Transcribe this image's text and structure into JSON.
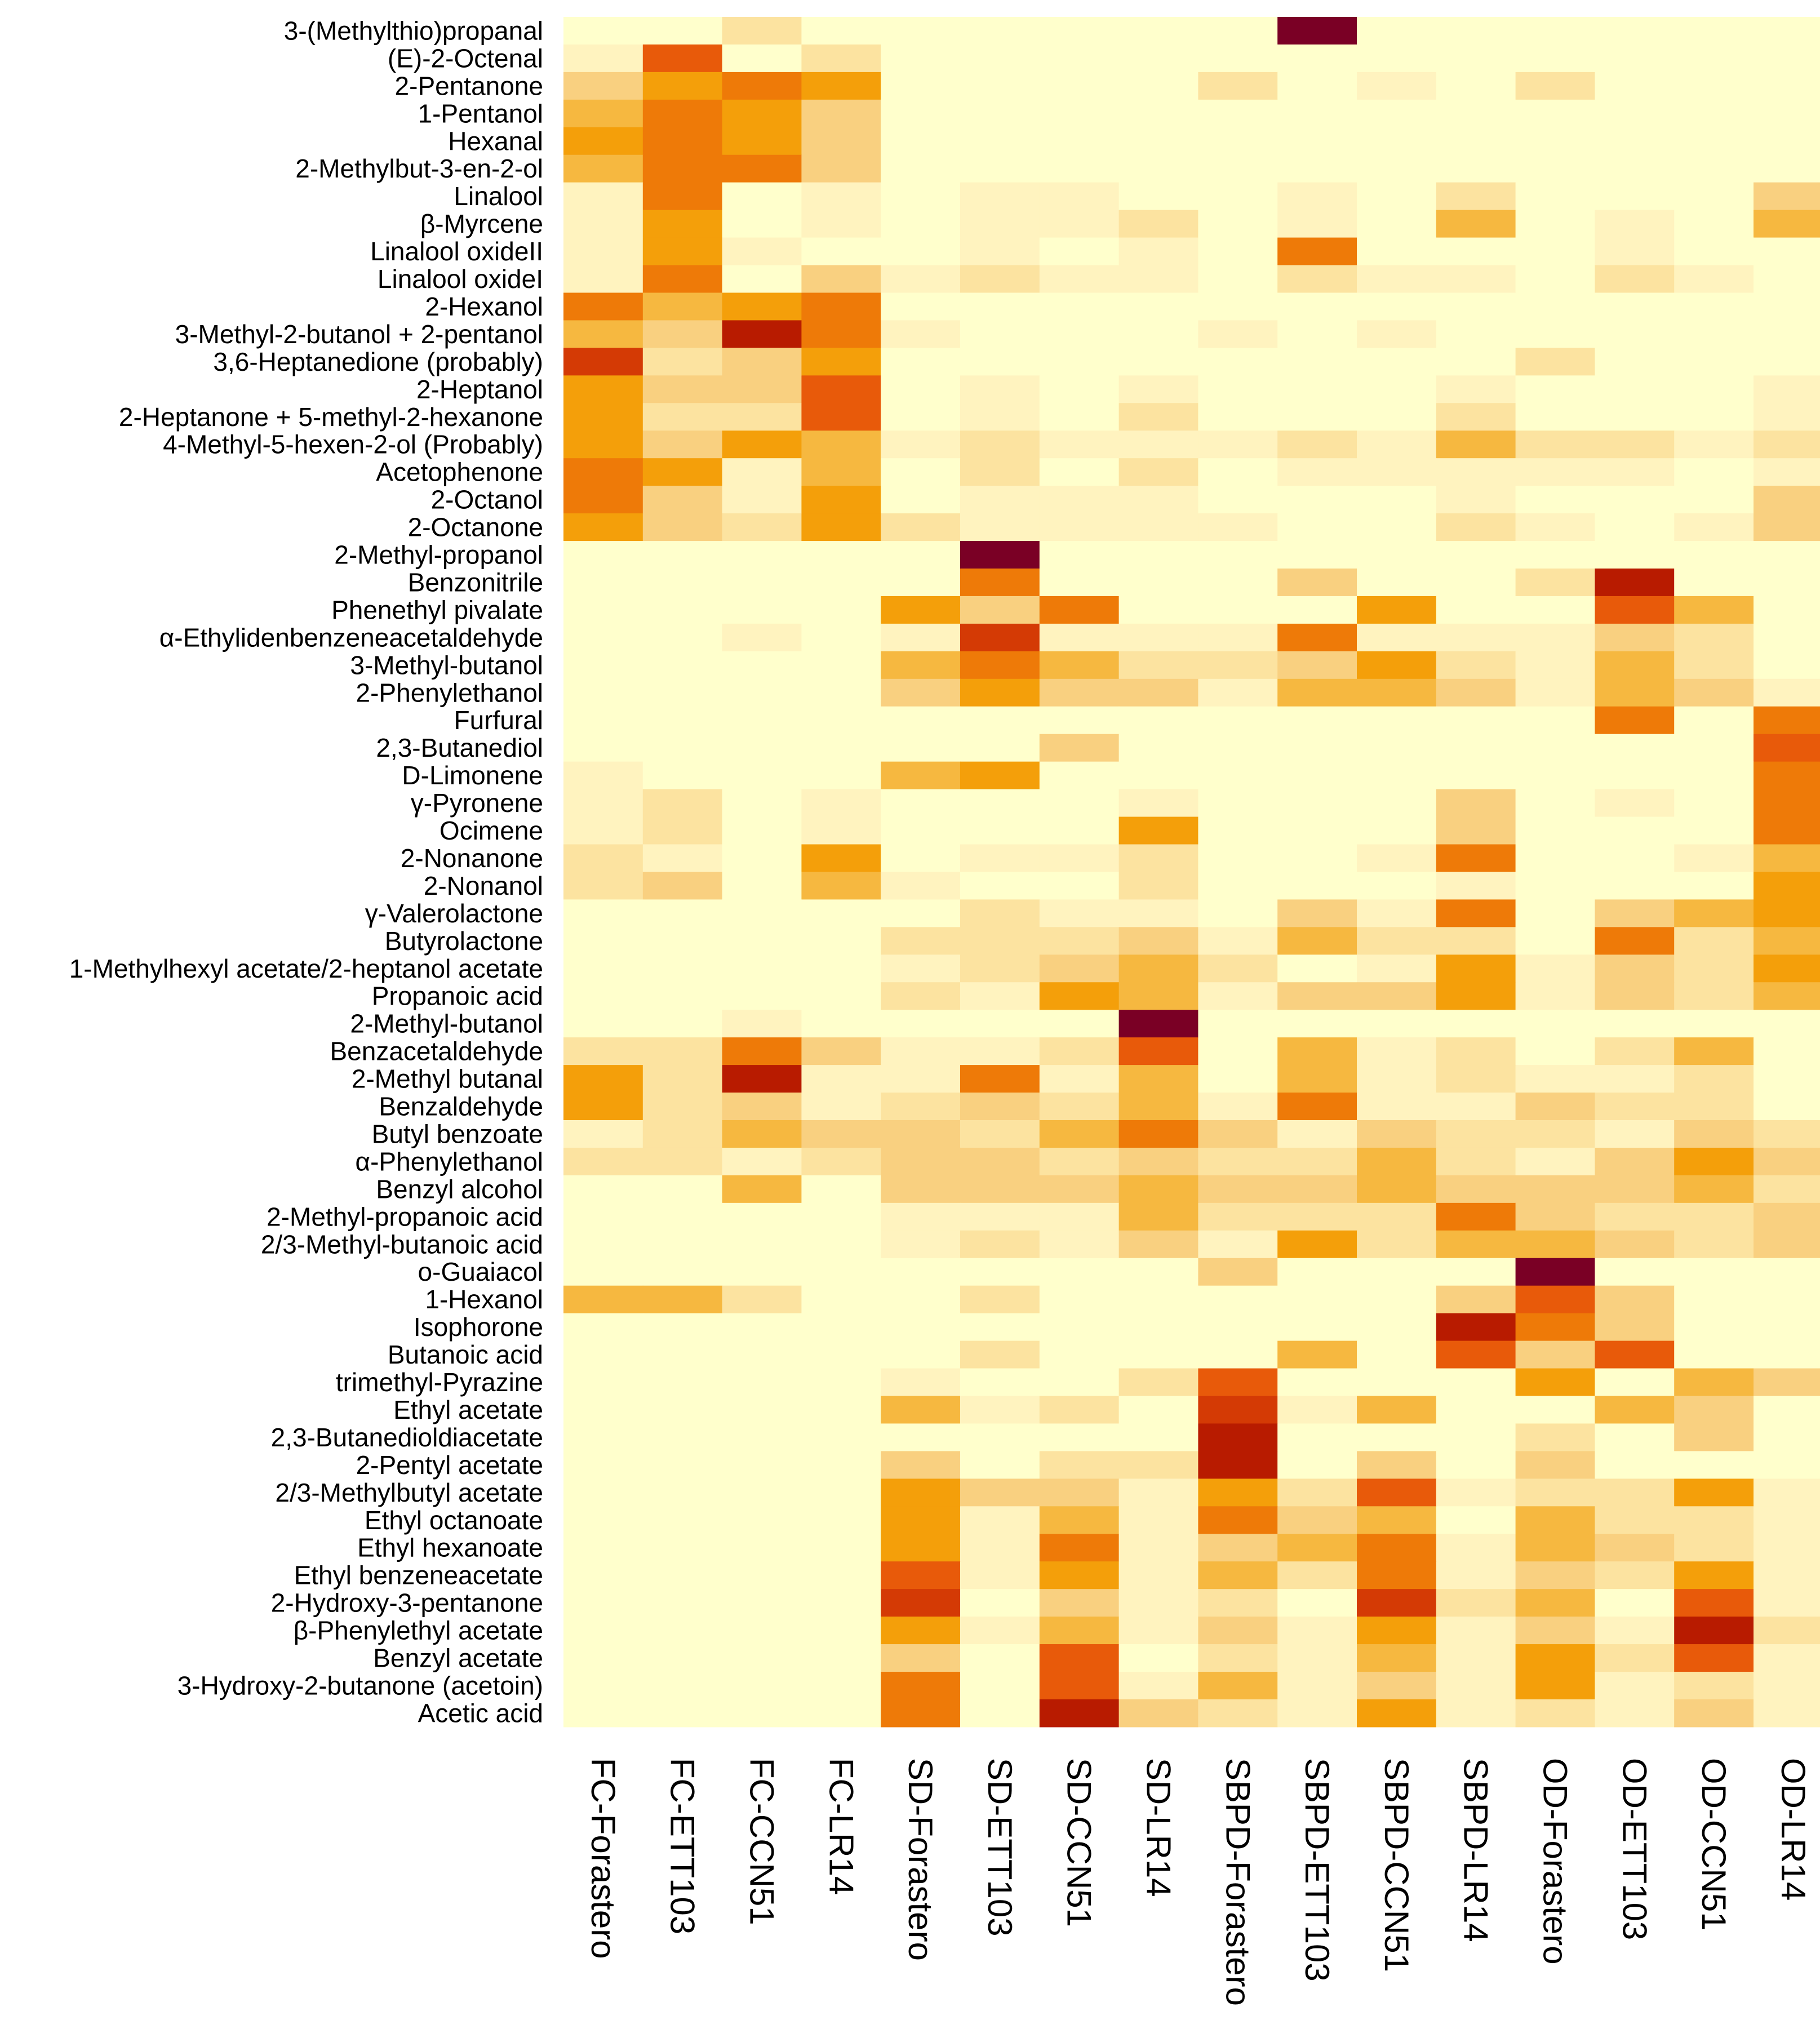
{
  "chart_data": {
    "type": "heatmap",
    "title": "",
    "xlabel": "",
    "ylabel": "",
    "legend": "none",
    "grid": false,
    "color_scale": {
      "min_color": "#FFFFCC",
      "stops": [
        "#FFFFCC",
        "#FFF3BF",
        "#FCE3A0",
        "#F9D080",
        "#F6B840",
        "#F49F0A",
        "#EE7A08",
        "#E85A0A",
        "#D43A05",
        "#B81B00",
        "#7A0025"
      ],
      "max_color": "#7A0025"
    },
    "columns": [
      "FC-Forastero",
      "FC-ETT103",
      "FC-CCN51",
      "FC-LR14",
      "SD-Forastero",
      "SD-ETT103",
      "SD-CCN51",
      "SD-LR14",
      "SBPD-Forastero",
      "SBPD-ETT103",
      "SBPD-CCN51",
      "SBPD-LR14",
      "OD-Forastero",
      "OD-ETT103",
      "OD-CCN51",
      "OD-LR14"
    ],
    "rows": [
      "3-(Methylthio)propanal",
      "(E)-2-Octenal",
      "2-Pentanone",
      "1-Pentanol",
      "Hexanal",
      "2-Methylbut-3-en-2-ol",
      "Linalool",
      "β-Myrcene",
      "Linalool oxideII",
      "Linalool oxideI",
      "2-Hexanol",
      "3-Methyl-2-butanol + 2-pentanol",
      "3,6-Heptanedione (probably)",
      "2-Heptanol",
      "2-Heptanone + 5-methyl-2-hexanone",
      "4-Methyl-5-hexen-2-ol (Probably)",
      "Acetophenone",
      "2-Octanol",
      "2-Octanone",
      "2-Methyl-propanol",
      "Benzonitrile",
      "Phenethyl pivalate",
      "α-Ethylidenbenzeneacetaldehyde",
      "3-Methyl-butanol",
      "2-Phenylethanol",
      "Furfural",
      "2,3-Butanediol",
      "D-Limonene",
      "γ-Pyronene",
      "Ocimene",
      "2-Nonanone",
      "2-Nonanol",
      "γ-Valerolactone",
      "Butyrolactone",
      "1-Methylhexyl acetate/2-heptanol acetate",
      "Propanoic acid",
      "2-Methyl-butanol",
      "Benzacetaldehyde",
      "2-Methyl butanal",
      "Benzaldehyde",
      "Butyl benzoate",
      "α-Phenylethanol",
      "Benzyl alcohol",
      "2-Methyl-propanoic acid",
      "2/3-Methyl-butanoic acid",
      "o-Guaiacol",
      "1-Hexanol",
      "Isophorone",
      "Butanoic acid",
      "trimethyl-Pyrazine",
      "Ethyl acetate",
      "2,3-Butanedioldiacetate",
      "2-Pentyl acetate",
      "2/3-Methylbutyl acetate",
      "Ethyl octanoate",
      "Ethyl hexanoate",
      "Ethyl benzeneacetate",
      "2-Hydroxy-3-pentanone",
      "β-Phenylethyl acetate",
      "Benzyl acetate",
      "3-Hydroxy-2-butanone (acetoin)",
      "Acetic acid"
    ],
    "values": [
      [
        0,
        0,
        2,
        0,
        0,
        0,
        0,
        0,
        0,
        10,
        0,
        0,
        0,
        0,
        0,
        0
      ],
      [
        1,
        7,
        0,
        2,
        0,
        0,
        0,
        0,
        0,
        0,
        0,
        0,
        0,
        0,
        0,
        0
      ],
      [
        3,
        5,
        6,
        5,
        0,
        0,
        0,
        0,
        2,
        0,
        1,
        0,
        2,
        0,
        0,
        0
      ],
      [
        4,
        6,
        5,
        3,
        0,
        0,
        0,
        0,
        0,
        0,
        0,
        0,
        0,
        0,
        0,
        0
      ],
      [
        5,
        6,
        5,
        3,
        0,
        0,
        0,
        0,
        0,
        0,
        0,
        0,
        0,
        0,
        0,
        0
      ],
      [
        4,
        6,
        6,
        3,
        0,
        0,
        0,
        0,
        0,
        0,
        0,
        0,
        0,
        0,
        0,
        0
      ],
      [
        1,
        6,
        0,
        1,
        0,
        1,
        1,
        0,
        0,
        1,
        0,
        2,
        0,
        0,
        0,
        3
      ],
      [
        1,
        5,
        0,
        1,
        0,
        1,
        1,
        2,
        0,
        1,
        0,
        4,
        0,
        1,
        0,
        4
      ],
      [
        1,
        5,
        1,
        0,
        0,
        1,
        0,
        1,
        0,
        6,
        0,
        0,
        0,
        1,
        0,
        0
      ],
      [
        1,
        6,
        0,
        3,
        1,
        2,
        1,
        1,
        0,
        2,
        1,
        1,
        0,
        2,
        1,
        0
      ],
      [
        6,
        4,
        5,
        6,
        0,
        0,
        0,
        0,
        0,
        0,
        0,
        0,
        0,
        0,
        0,
        0
      ],
      [
        4,
        3,
        9,
        6,
        1,
        0,
        0,
        0,
        1,
        0,
        1,
        0,
        0,
        0,
        0,
        0
      ],
      [
        8,
        2,
        3,
        5,
        0,
        0,
        0,
        0,
        0,
        0,
        0,
        0,
        2,
        0,
        0,
        0
      ],
      [
        5,
        3,
        3,
        7,
        0,
        1,
        0,
        1,
        0,
        0,
        0,
        1,
        0,
        0,
        0,
        1
      ],
      [
        5,
        2,
        2,
        7,
        0,
        1,
        0,
        2,
        0,
        0,
        0,
        2,
        0,
        0,
        0,
        1
      ],
      [
        5,
        3,
        5,
        4,
        1,
        2,
        1,
        1,
        1,
        2,
        1,
        4,
        2,
        2,
        1,
        2
      ],
      [
        6,
        5,
        1,
        4,
        0,
        2,
        0,
        2,
        0,
        1,
        1,
        1,
        1,
        1,
        0,
        1
      ],
      [
        6,
        3,
        1,
        5,
        0,
        1,
        1,
        1,
        0,
        0,
        0,
        1,
        0,
        0,
        0,
        3
      ],
      [
        5,
        3,
        2,
        5,
        2,
        1,
        1,
        1,
        1,
        0,
        0,
        2,
        1,
        0,
        1,
        3
      ],
      [
        0,
        0,
        0,
        0,
        0,
        10,
        0,
        0,
        0,
        0,
        0,
        0,
        0,
        0,
        0,
        0
      ],
      [
        0,
        0,
        0,
        0,
        0,
        6,
        0,
        0,
        0,
        3,
        0,
        0,
        2,
        9,
        0,
        0
      ],
      [
        0,
        0,
        0,
        0,
        5,
        3,
        6,
        0,
        0,
        0,
        5,
        0,
        0,
        7,
        4,
        0
      ],
      [
        0,
        0,
        1,
        0,
        1,
        8,
        1,
        1,
        1,
        6,
        1,
        1,
        1,
        3,
        2,
        0
      ],
      [
        0,
        0,
        0,
        0,
        4,
        6,
        4,
        2,
        2,
        3,
        5,
        2,
        1,
        4,
        2,
        0
      ],
      [
        0,
        0,
        0,
        0,
        3,
        5,
        3,
        3,
        1,
        4,
        4,
        3,
        1,
        4,
        3,
        1
      ],
      [
        0,
        0,
        0,
        0,
        0,
        0,
        0,
        0,
        0,
        0,
        0,
        0,
        0,
        6,
        0,
        6
      ],
      [
        0,
        0,
        0,
        0,
        0,
        0,
        3,
        0,
        0,
        0,
        0,
        0,
        0,
        0,
        0,
        7
      ],
      [
        1,
        0,
        0,
        0,
        4,
        5,
        0,
        0,
        0,
        0,
        0,
        0,
        0,
        0,
        0,
        6
      ],
      [
        1,
        2,
        0,
        1,
        0,
        0,
        0,
        1,
        0,
        0,
        0,
        3,
        0,
        1,
        0,
        6
      ],
      [
        1,
        2,
        0,
        1,
        0,
        0,
        0,
        5,
        0,
        0,
        0,
        3,
        0,
        0,
        0,
        6
      ],
      [
        2,
        1,
        0,
        5,
        0,
        1,
        1,
        2,
        0,
        0,
        1,
        6,
        0,
        0,
        1,
        4
      ],
      [
        2,
        3,
        0,
        4,
        1,
        0,
        0,
        2,
        0,
        0,
        0,
        1,
        0,
        0,
        0,
        5
      ],
      [
        0,
        0,
        0,
        0,
        0,
        2,
        1,
        1,
        0,
        3,
        1,
        6,
        0,
        3,
        4,
        5
      ],
      [
        0,
        0,
        0,
        0,
        2,
        2,
        2,
        3,
        1,
        4,
        2,
        2,
        0,
        6,
        2,
        4
      ],
      [
        0,
        0,
        0,
        0,
        1,
        2,
        3,
        4,
        2,
        0,
        1,
        5,
        1,
        3,
        2,
        5
      ],
      [
        0,
        0,
        0,
        0,
        2,
        1,
        5,
        4,
        1,
        3,
        3,
        5,
        1,
        3,
        2,
        4
      ],
      [
        0,
        0,
        1,
        0,
        0,
        0,
        0,
        10,
        0,
        0,
        0,
        0,
        0,
        0,
        0,
        0
      ],
      [
        2,
        2,
        6,
        3,
        1,
        1,
        2,
        7,
        0,
        4,
        1,
        2,
        0,
        2,
        4,
        0
      ],
      [
        5,
        2,
        9,
        1,
        1,
        6,
        1,
        4,
        0,
        4,
        1,
        2,
        1,
        1,
        2,
        0
      ],
      [
        5,
        2,
        3,
        1,
        2,
        3,
        2,
        4,
        1,
        6,
        1,
        1,
        3,
        2,
        2,
        0
      ],
      [
        1,
        2,
        4,
        3,
        3,
        2,
        4,
        6,
        3,
        1,
        3,
        2,
        2,
        1,
        3,
        2
      ],
      [
        2,
        2,
        1,
        2,
        3,
        3,
        2,
        3,
        2,
        2,
        4,
        2,
        1,
        3,
        5,
        3
      ],
      [
        0,
        0,
        4,
        0,
        3,
        3,
        3,
        4,
        3,
        3,
        4,
        3,
        3,
        3,
        4,
        2
      ],
      [
        0,
        0,
        0,
        0,
        1,
        1,
        1,
        4,
        2,
        2,
        2,
        6,
        3,
        2,
        2,
        3
      ],
      [
        0,
        0,
        0,
        0,
        1,
        2,
        1,
        3,
        1,
        5,
        2,
        4,
        4,
        3,
        2,
        3
      ],
      [
        0,
        0,
        0,
        0,
        0,
        0,
        0,
        0,
        3,
        0,
        0,
        0,
        10,
        0,
        0,
        0
      ],
      [
        4,
        4,
        2,
        0,
        0,
        2,
        0,
        0,
        0,
        0,
        0,
        3,
        7,
        3,
        0,
        0
      ],
      [
        0,
        0,
        0,
        0,
        0,
        0,
        0,
        0,
        0,
        0,
        0,
        9,
        6,
        3,
        0,
        0
      ],
      [
        0,
        0,
        0,
        0,
        0,
        2,
        0,
        0,
        0,
        4,
        0,
        7,
        3,
        7,
        0,
        0
      ],
      [
        0,
        0,
        0,
        0,
        1,
        0,
        0,
        2,
        7,
        0,
        0,
        0,
        5,
        0,
        4,
        3
      ],
      [
        0,
        0,
        0,
        0,
        4,
        1,
        2,
        0,
        8,
        1,
        4,
        0,
        0,
        4,
        3,
        0
      ],
      [
        0,
        0,
        0,
        0,
        0,
        0,
        0,
        0,
        9,
        0,
        0,
        0,
        2,
        0,
        3,
        0
      ],
      [
        0,
        0,
        0,
        0,
        3,
        0,
        2,
        2,
        9,
        0,
        3,
        0,
        3,
        0,
        0,
        0
      ],
      [
        0,
        0,
        0,
        0,
        5,
        3,
        3,
        1,
        5,
        2,
        7,
        1,
        2,
        2,
        5,
        1
      ],
      [
        0,
        0,
        0,
        0,
        5,
        1,
        4,
        1,
        6,
        3,
        4,
        0,
        4,
        2,
        2,
        1
      ],
      [
        0,
        0,
        0,
        0,
        5,
        1,
        6,
        1,
        3,
        4,
        6,
        1,
        4,
        3,
        2,
        1
      ],
      [
        0,
        0,
        0,
        0,
        7,
        1,
        5,
        1,
        4,
        2,
        6,
        1,
        3,
        2,
        5,
        1
      ],
      [
        0,
        0,
        0,
        0,
        8,
        0,
        3,
        1,
        2,
        0,
        8,
        2,
        4,
        0,
        7,
        1
      ],
      [
        0,
        0,
        0,
        0,
        5,
        1,
        4,
        1,
        3,
        1,
        5,
        1,
        3,
        1,
        9,
        2
      ],
      [
        0,
        0,
        0,
        0,
        3,
        0,
        7,
        0,
        2,
        1,
        4,
        1,
        5,
        2,
        7,
        1
      ],
      [
        0,
        0,
        0,
        0,
        6,
        0,
        7,
        1,
        4,
        1,
        3,
        1,
        5,
        1,
        2,
        1
      ],
      [
        0,
        0,
        0,
        0,
        6,
        0,
        9,
        3,
        2,
        1,
        5,
        1,
        2,
        1,
        3,
        1
      ]
    ]
  }
}
